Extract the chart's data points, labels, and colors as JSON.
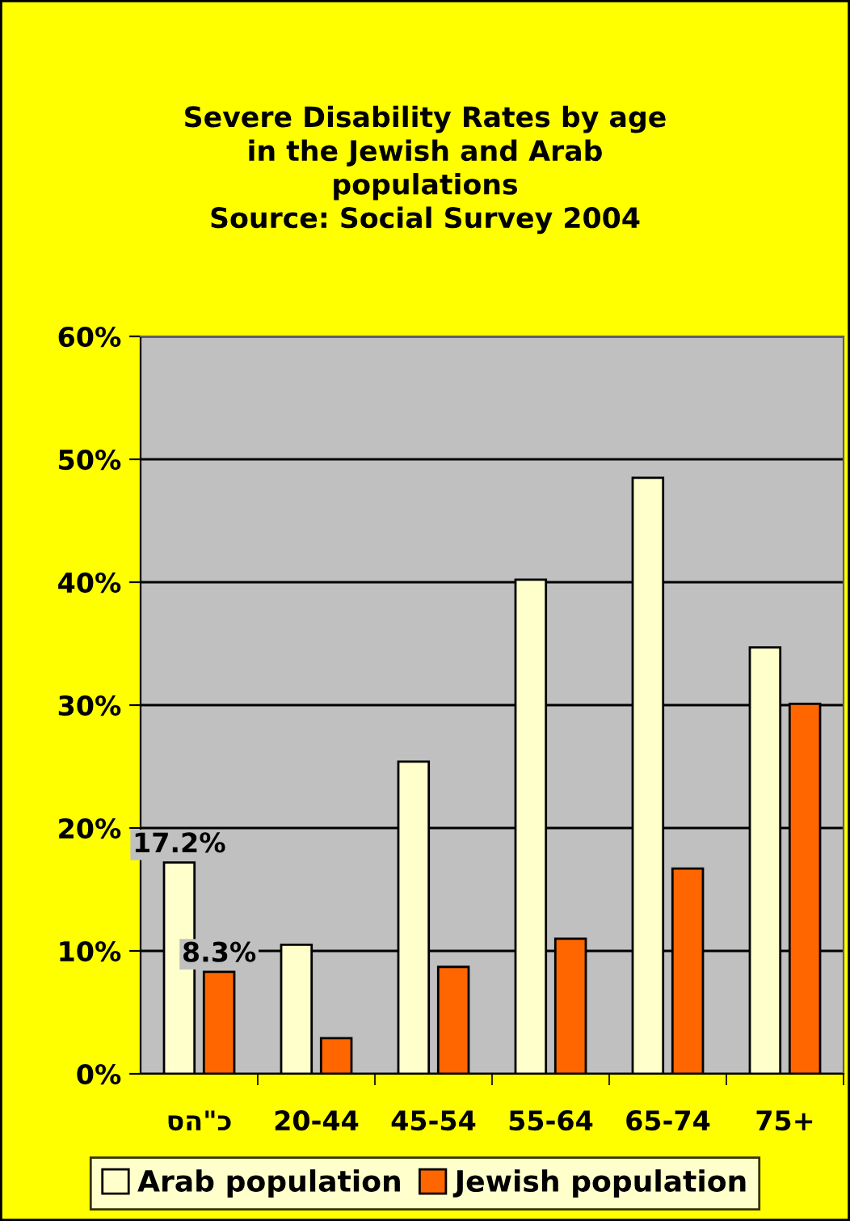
{
  "chart_data": {
    "type": "bar",
    "title": "Severe Disability Rates by age\nin the Jewish and Arab\npopulations\nSource: Social Survey 2004",
    "categories": [
      "סה\"כ",
      "20-44",
      "45-54",
      "55-64",
      "65-74",
      "75+"
    ],
    "series": [
      {
        "name": "Arab population",
        "color": "#ffffcc",
        "values": [
          17.2,
          10.5,
          25.4,
          40.2,
          48.5,
          34.7
        ],
        "value_labels": [
          "17.2%",
          null,
          null,
          null,
          null,
          null
        ]
      },
      {
        "name": "Jewish population",
        "color": "#ff6600",
        "values": [
          8.3,
          2.9,
          8.7,
          11.0,
          16.7,
          30.1
        ],
        "value_labels": [
          "8.3%",
          null,
          null,
          null,
          null,
          null
        ]
      }
    ],
    "ylim": [
      0,
      60
    ],
    "yticks": [
      {
        "value": 0,
        "label": "0%"
      },
      {
        "value": 10,
        "label": "10%"
      },
      {
        "value": 20,
        "label": "20%"
      },
      {
        "value": 30,
        "label": "30%"
      },
      {
        "value": 40,
        "label": "40%"
      },
      {
        "value": 50,
        "label": "50%"
      },
      {
        "value": 60,
        "label": "60%"
      }
    ],
    "grid": "y",
    "legend": "bottom"
  }
}
